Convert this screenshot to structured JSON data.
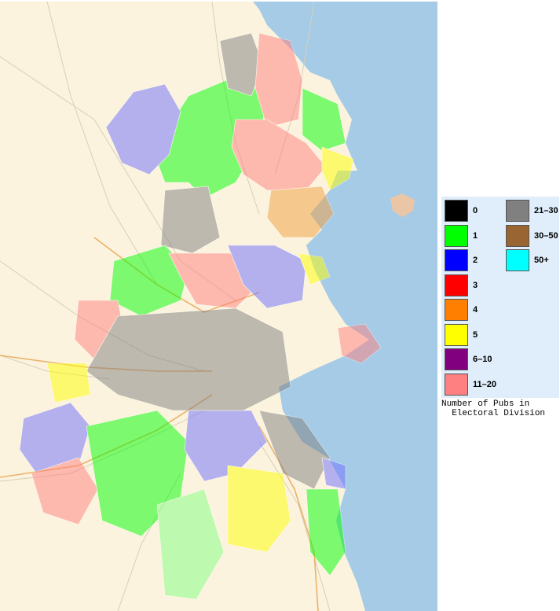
{
  "legend": {
    "caption": "Number of Pubs in\n  Electoral Division",
    "items": [
      {
        "label": "0",
        "color": "#000000"
      },
      {
        "label": "1",
        "color": "#00ff00"
      },
      {
        "label": "2",
        "color": "#0000ff"
      },
      {
        "label": "3",
        "color": "#ff0000"
      },
      {
        "label": "4",
        "color": "#ff8000"
      },
      {
        "label": "5",
        "color": "#ffff00"
      },
      {
        "label": "6–10",
        "color": "#800080"
      },
      {
        "label": "11–20",
        "color": "#ff8080"
      },
      {
        "label": "21–30",
        "color": "#808080"
      },
      {
        "label": "30–50",
        "color": "#996633"
      },
      {
        "label": "50+",
        "color": "#00ffff"
      }
    ]
  },
  "map": {
    "land_color": "#fbf3de",
    "sea_color": "#a6cbe6",
    "region_opacity": 0.45
  }
}
